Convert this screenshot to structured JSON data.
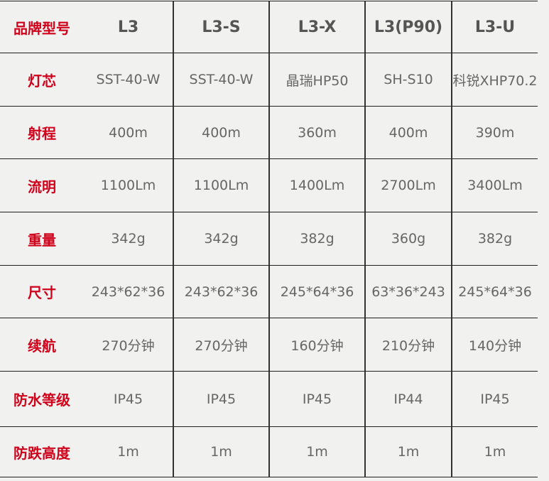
{
  "header": {
    "label": "品牌型号",
    "models": [
      "L3",
      "L3-S",
      "L3-X",
      "L3(P90)",
      "L3-U"
    ]
  },
  "rows": [
    {
      "label": "灯芯",
      "values": [
        "SST-40-W",
        "SST-40-W",
        "晶瑞HP50",
        "SH-S10",
        "科锐XHP70.2"
      ]
    },
    {
      "label": "射程",
      "values": [
        "400m",
        "400m",
        "360m",
        "400m",
        "390m"
      ]
    },
    {
      "label": "流明",
      "values": [
        "1100Lm",
        "1100Lm",
        "1400Lm",
        "2700Lm",
        "3400Lm"
      ]
    },
    {
      "label": "重量",
      "values": [
        "342g",
        "342g",
        "382g",
        "360g",
        "382g"
      ]
    },
    {
      "label": "尺寸",
      "values": [
        "243*62*36",
        "243*62*36",
        "245*64*36",
        "63*36*243",
        "245*64*36"
      ]
    },
    {
      "label": "续航",
      "values": [
        "270分钟",
        "270分钟",
        "160分钟",
        "210分钟",
        "140分钟"
      ]
    },
    {
      "label": "防水等级",
      "values": [
        "IP45",
        "IP45",
        "IP45",
        "IP44",
        "IP45"
      ]
    },
    {
      "label": "防跌高度",
      "values": [
        "1m",
        "1m",
        "1m",
        "1m",
        "1m"
      ]
    }
  ],
  "colors": {
    "label": "#d0021b",
    "text": "#666666",
    "background": "#f1f1f0"
  }
}
